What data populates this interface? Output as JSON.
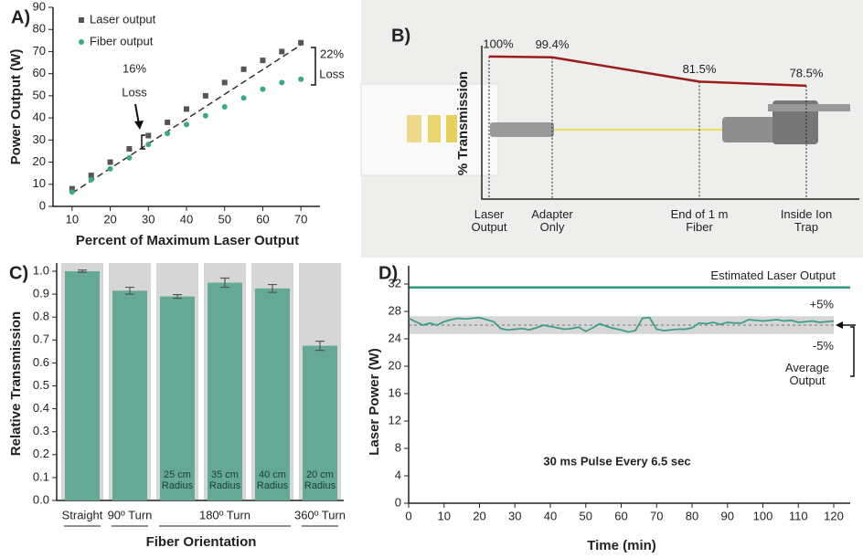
{
  "chart_data": [
    {
      "type": "scatter",
      "panel_label": "A)",
      "xlabel": "Percent of Maximum Laser Output",
      "ylabel": "Power Output (W)",
      "xlim": [
        5,
        75
      ],
      "ylim": [
        0,
        90
      ],
      "xticks": [
        10,
        20,
        30,
        40,
        50,
        60,
        70
      ],
      "yticks": [
        0,
        10,
        20,
        30,
        40,
        50,
        60,
        70,
        80,
        90
      ],
      "x": [
        10,
        15,
        20,
        25,
        30,
        35,
        40,
        45,
        50,
        55,
        60,
        65,
        70
      ],
      "series": [
        {
          "name": "Laser output",
          "color": "#555555",
          "marker": "square",
          "values": [
            8,
            14,
            20,
            26,
            32,
            38,
            44,
            50,
            56,
            62,
            66,
            70,
            74
          ]
        },
        {
          "name": "Fiber output",
          "color": "#3aa88a",
          "marker": "circle",
          "values": [
            6.5,
            12,
            17,
            22,
            28,
            33,
            37,
            41,
            45,
            49,
            53,
            56,
            57.5
          ]
        }
      ],
      "trendline": {
        "x": [
          10,
          70
        ],
        "y": [
          6,
          73
        ]
      },
      "annotations": [
        "16%",
        "Loss",
        "22%",
        "Loss"
      ]
    },
    {
      "type": "line",
      "panel_label": "B)",
      "ylabel": "% Transmission",
      "categories": [
        "Laser Output",
        "Adapter Only",
        "End of 1 m Fiber",
        "Inside Ion Trap"
      ],
      "values": [
        100,
        99.4,
        81.5,
        78.5
      ],
      "value_labels": [
        "100%",
        "99.4%",
        "81.5%",
        "78.5%"
      ],
      "color": "#9b1c1c",
      "ylim": [
        -5,
        108
      ]
    },
    {
      "type": "bar",
      "panel_label": "C)",
      "xlabel": "Fiber Orientation",
      "ylabel": "Relative Transmission",
      "categories": [
        "Straight",
        "90º Turn",
        null,
        null,
        null,
        "360º Turn"
      ],
      "groups": [
        {
          "label": "180º Turn",
          "from": 2,
          "to": 4
        }
      ],
      "bar_labels": [
        null,
        null,
        "25 cm Radius",
        "35 cm Radius",
        "40 cm Radius",
        "20 cm Radius"
      ],
      "values": [
        1.0,
        0.915,
        0.89,
        0.95,
        0.925,
        0.675
      ],
      "errors": [
        0.005,
        0.015,
        0.008,
        0.02,
        0.017,
        0.02
      ],
      "color": "#63a996",
      "background": "#d6d6d6",
      "ylim": [
        0,
        1
      ],
      "yticks": [
        {
          "value": 0,
          "label": "0.0"
        },
        0.1,
        0.2,
        0.3,
        0.4,
        0.5,
        0.6,
        0.7,
        0.8,
        0.9,
        {
          "value": 1,
          "label": "1.0"
        }
      ]
    },
    {
      "type": "line",
      "panel_label": "D)",
      "xlabel": "Time (min)",
      "ylabel": "Laser Power (W)",
      "annotation": "30 ms Pulse Every 6.5 sec",
      "xlim": [
        0,
        120
      ],
      "ylim": [
        0,
        32
      ],
      "xticks": [
        0,
        10,
        20,
        30,
        40,
        50,
        60,
        70,
        80,
        90,
        100,
        110,
        120
      ],
      "yticks": [
        0,
        4,
        8,
        12,
        16,
        20,
        24,
        28,
        32
      ],
      "x": [
        0,
        2,
        4,
        6,
        8,
        10,
        12,
        14,
        16,
        18,
        20,
        22,
        24,
        26,
        28,
        30,
        32,
        34,
        36,
        38,
        40,
        42,
        44,
        46,
        48,
        50,
        52,
        54,
        56,
        58,
        60,
        62,
        64,
        66,
        68,
        70,
        72,
        74,
        76,
        78,
        80,
        82,
        84,
        86,
        88,
        90,
        92,
        94,
        96,
        98,
        100,
        102,
        104,
        106,
        108,
        110,
        112,
        114,
        116,
        118,
        120
      ],
      "series": [
        {
          "color": "#3a9e8a",
          "values": [
            27,
            26.5,
            26,
            26.3,
            26,
            26.5,
            26.8,
            27,
            26.9,
            27,
            27.1,
            26.8,
            26.5,
            25.5,
            25.3,
            25.4,
            25.5,
            25.3,
            25.6,
            26,
            25.8,
            25.6,
            25.4,
            25.5,
            25.7,
            25.1,
            25.6,
            26.2,
            25.8,
            25.5,
            25.3,
            25,
            25.2,
            27,
            27.1,
            25.4,
            25.2,
            25.3,
            25.4,
            25.4,
            25.6,
            26.3,
            26.2,
            26.4,
            26.1,
            26.4,
            26.3,
            26.3,
            26.8,
            26.7,
            26.6,
            26.7,
            26.8,
            26.6,
            26.7,
            26.4,
            26.5,
            26.6,
            26.4,
            26.5,
            26.6
          ]
        }
      ],
      "reference_line": {
        "label": "Estimated Laser Output",
        "value": 31.5,
        "color": "#2f9a80"
      },
      "average": {
        "label": "Average Output",
        "value": 26
      },
      "band": {
        "lower": 24.7,
        "upper": 27.3,
        "upper_label": "+5%",
        "lower_label": "-5%",
        "color": "#d6d6d6"
      }
    }
  ]
}
